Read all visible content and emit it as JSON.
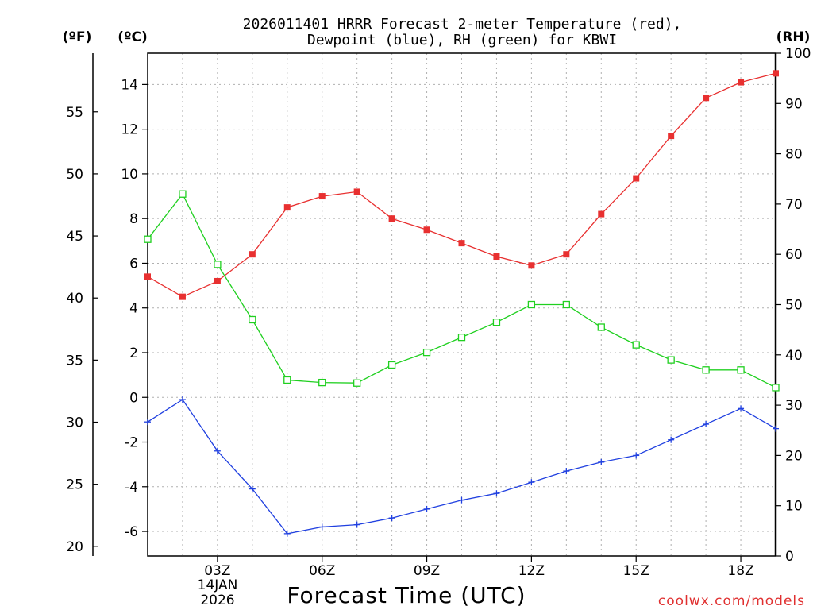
{
  "chart_data": {
    "type": "line",
    "title_lines": [
      "2026011401 HRRR Forecast 2-meter Temperature (red),",
      "Dewpoint (blue), RH (green) for KBWI"
    ],
    "xlabel": "Forecast Time (UTC)",
    "credit": "coolwx.com/models",
    "date_label": {
      "day": "14JAN",
      "year": "2026"
    },
    "units": {
      "left_f": "(ºF)",
      "left_c": "(ºC)",
      "right_rh": "(RH)"
    },
    "x_hours": [
      1,
      2,
      3,
      4,
      5,
      6,
      7,
      8,
      9,
      10,
      11,
      12,
      13,
      14,
      15,
      16,
      17,
      18,
      19
    ],
    "x_ticks": [
      {
        "hour": 3,
        "label": "03Z"
      },
      {
        "hour": 6,
        "label": "06Z"
      },
      {
        "hour": 9,
        "label": "09Z"
      },
      {
        "hour": 12,
        "label": "12Z"
      },
      {
        "hour": 15,
        "label": "15Z"
      },
      {
        "hour": 18,
        "label": "18Z"
      }
    ],
    "xlim": [
      1,
      19
    ],
    "ylim_c": [
      -7.1,
      15.4
    ],
    "ylim_rh": [
      0,
      100
    ],
    "y_ticks_c": [
      "-6",
      "-4",
      "-2",
      "0",
      "2",
      "4",
      "6",
      "8",
      "10",
      "12",
      "14"
    ],
    "y_ticks_f": [
      "20",
      "25",
      "30",
      "35",
      "40",
      "45",
      "50",
      "55"
    ],
    "y_ticks_rh": [
      "0",
      "10",
      "20",
      "30",
      "40",
      "50",
      "60",
      "70",
      "80",
      "90",
      "100"
    ],
    "series": [
      {
        "name": "Temperature (°C)",
        "color": "#e83030",
        "marker": "filled-square",
        "axis": "c",
        "values": [
          5.4,
          4.5,
          5.2,
          6.4,
          8.5,
          9.0,
          9.2,
          8.0,
          7.5,
          6.9,
          6.3,
          5.9,
          6.4,
          8.2,
          9.8,
          11.7,
          13.4,
          14.1,
          14.5
        ]
      },
      {
        "name": "Dewpoint (°C)",
        "color": "#2040e0",
        "marker": "plus",
        "axis": "c",
        "values": [
          -1.1,
          -0.1,
          -2.4,
          -4.1,
          -6.1,
          -5.8,
          -5.7,
          -5.4,
          -5.0,
          -4.6,
          -4.3,
          -3.8,
          -3.3,
          -2.9,
          -2.6,
          -1.9,
          -1.2,
          -0.5,
          -1.4
        ]
      },
      {
        "name": "RH (%)",
        "color": "#20d020",
        "marker": "open-square",
        "axis": "rh",
        "values": [
          63,
          72,
          58,
          47,
          35,
          34.5,
          34.4,
          38,
          40.5,
          43.5,
          46.5,
          50,
          50,
          45.5,
          42,
          39,
          37,
          37,
          33.5
        ]
      }
    ]
  }
}
